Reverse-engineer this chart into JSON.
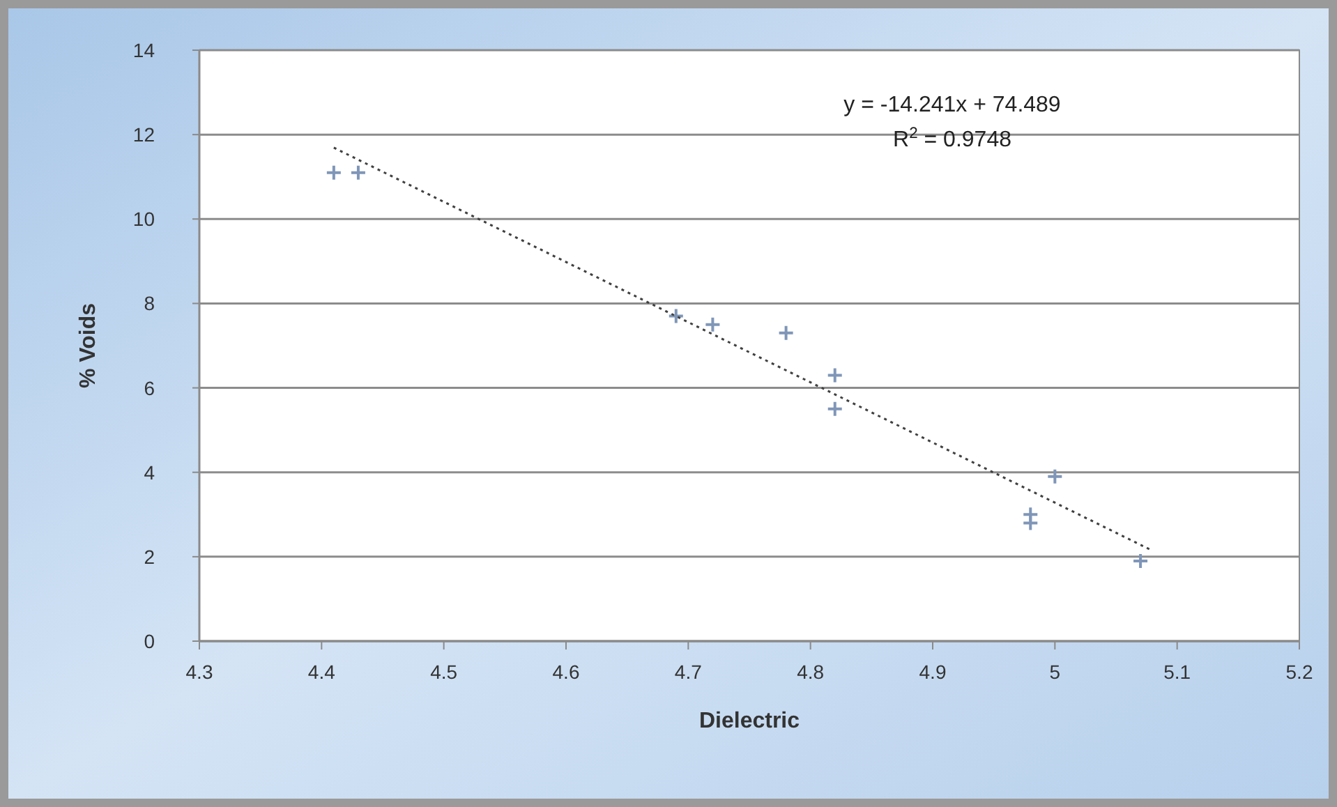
{
  "chart_data": {
    "type": "scatter",
    "xlabel": "Dielectric",
    "ylabel": "% Voids",
    "xlim": [
      4.3,
      5.2
    ],
    "xticks": [
      4.3,
      4.4,
      4.5,
      4.6,
      4.7,
      4.8,
      4.9,
      5,
      5.1,
      5.2
    ],
    "ylim": [
      0,
      14
    ],
    "yticks": [
      0,
      2,
      4,
      6,
      8,
      10,
      12,
      14
    ],
    "grid": "y",
    "series": [
      {
        "color": "#7f96b8",
        "marker": "cross",
        "x": [
          4.41,
          4.43,
          4.69,
          4.72,
          4.78,
          4.82,
          4.82,
          4.98,
          4.98,
          5.0,
          5.07
        ],
        "values": [
          11.1,
          11.1,
          7.7,
          7.5,
          7.3,
          6.3,
          5.5,
          3.0,
          2.8,
          3.9,
          1.9
        ]
      },
      {
        "type": "line",
        "color": "#404040",
        "marker": "none",
        "line_style": "dotted",
        "x": [
          4.41,
          5.08
        ],
        "values": [
          11.69,
          2.14
        ]
      }
    ],
    "annotations": [
      "y = -14.241x + 74.489",
      "R$^{2}$ = 0.9748"
    ]
  }
}
